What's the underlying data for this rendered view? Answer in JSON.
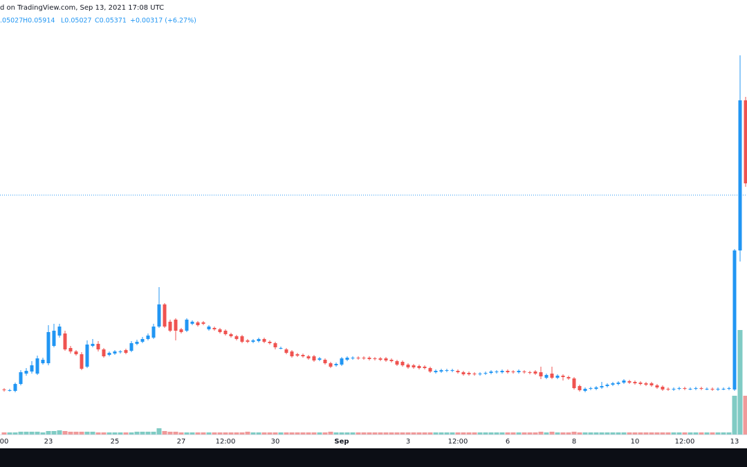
{
  "chart_data": {
    "type": "candlestick",
    "attribution": "d on TradingView.com, Sep 13, 2021 17:08 UTC",
    "ohlc_legend": [
      ".05027",
      "H0.05914",
      "L0.05027",
      "C0.05371",
      "+0.00317 (+6.27%)"
    ],
    "up_color": "#2196f3",
    "down_color": "#ef5350",
    "volume_up_color": "#80cbc4",
    "volume_down_color": "#ef9a9a",
    "legend_color": "#2196f3",
    "price_line": 0.0418,
    "ylim": [
      0.0072,
      0.068
    ],
    "volume_lim": [
      0,
      608
    ],
    "categories": [
      "00",
      null,
      null,
      null,
      null,
      null,
      null,
      null,
      "23",
      null,
      null,
      null,
      null,
      null,
      null,
      null,
      null,
      null,
      null,
      null,
      "25",
      null,
      null,
      null,
      null,
      null,
      null,
      null,
      null,
      null,
      null,
      null,
      "27",
      null,
      null,
      null,
      null,
      null,
      null,
      null,
      "12:00",
      null,
      null,
      null,
      null,
      null,
      null,
      null,
      null,
      "30",
      null,
      null,
      null,
      null,
      null,
      null,
      null,
      null,
      null,
      null,
      null,
      "Sep",
      null,
      null,
      null,
      null,
      null,
      null,
      null,
      null,
      null,
      null,
      null,
      "3",
      null,
      null,
      null,
      null,
      null,
      null,
      null,
      null,
      "12:00",
      null,
      null,
      null,
      null,
      null,
      null,
      null,
      null,
      "6",
      null,
      null,
      null,
      null,
      null,
      null,
      null,
      null,
      null,
      null,
      null,
      "8",
      null,
      null,
      null,
      null,
      null,
      null,
      null,
      null,
      null,
      null,
      "10",
      null,
      null,
      null,
      null,
      null,
      null,
      null,
      null,
      "12:00",
      null,
      null,
      null,
      null,
      null,
      null,
      null,
      null,
      "13",
      null,
      null
    ],
    "open": [
      0.0137,
      0.0136,
      0.0135,
      0.0145,
      0.016,
      0.0163,
      0.016,
      0.0175,
      0.0175,
      0.02,
      0.0215,
      0.0218,
      0.0197,
      0.0192,
      0.0188,
      0.017,
      0.02,
      0.0203,
      0.0195,
      0.0187,
      0.0189,
      0.0191,
      0.0194,
      0.0193,
      0.0203,
      0.0206,
      0.021,
      0.0212,
      0.0228,
      0.026,
      0.0235,
      0.0238,
      0.0224,
      0.0222,
      0.0232,
      0.0234,
      0.0234,
      0.0224,
      0.0226,
      0.0224,
      0.0222,
      0.0217,
      0.0214,
      0.0214,
      0.0208,
      0.0206,
      0.0207,
      0.021,
      0.0206,
      0.0204,
      0.0196,
      0.0195,
      0.0192,
      0.0188,
      0.0187,
      0.0185,
      0.0185,
      0.018,
      0.018,
      0.0175,
      0.0172,
      0.0173,
      0.018,
      0.0182,
      0.0183,
      0.0183,
      0.0183,
      0.0182,
      0.0182,
      0.0182,
      0.018,
      0.0178,
      0.0177,
      0.0173,
      0.0172,
      0.0171,
      0.017,
      0.0168,
      0.0162,
      0.0163,
      0.0164,
      0.0164,
      0.0164,
      0.0162,
      0.0161,
      0.016,
      0.0159,
      0.016,
      0.0161,
      0.0162,
      0.0162,
      0.0164,
      0.0163,
      0.0162,
      0.0163,
      0.0162,
      0.0163,
      0.0162,
      0.0154,
      0.016,
      0.0154,
      0.0157,
      0.0155,
      0.0153,
      0.0142,
      0.0135,
      0.0138,
      0.0138,
      0.014,
      0.0142,
      0.0144,
      0.0145,
      0.0147,
      0.0149,
      0.0148,
      0.0147,
      0.0146,
      0.0146,
      0.0143,
      0.0141,
      0.0138,
      0.0137,
      0.0138,
      0.0139,
      0.0138,
      0.0138,
      0.0139,
      0.0138,
      0.0138,
      0.0137,
      0.0138,
      0.0138,
      0.0137,
      0.0338,
      0.0555
    ],
    "high": [
      0.0139,
      0.0138,
      0.0147,
      0.0165,
      0.0168,
      0.0178,
      0.0186,
      0.0183,
      0.023,
      0.0232,
      0.0232,
      0.0222,
      0.02,
      0.0194,
      0.0191,
      0.0208,
      0.021,
      0.0207,
      0.0197,
      0.0192,
      0.0194,
      0.0194,
      0.0196,
      0.0207,
      0.0209,
      0.0213,
      0.0218,
      0.0232,
      0.0285,
      0.0262,
      0.0238,
      0.024,
      0.0226,
      0.024,
      0.0237,
      0.0236,
      0.0236,
      0.023,
      0.0228,
      0.0226,
      0.0224,
      0.0219,
      0.0216,
      0.0216,
      0.021,
      0.021,
      0.0212,
      0.0212,
      0.0208,
      0.0206,
      0.0199,
      0.0197,
      0.0194,
      0.019,
      0.0189,
      0.0187,
      0.0187,
      0.0184,
      0.0182,
      0.0177,
      0.0176,
      0.0184,
      0.0185,
      0.0185,
      0.0185,
      0.0185,
      0.0185,
      0.0184,
      0.0184,
      0.0184,
      0.0182,
      0.018,
      0.0179,
      0.0175,
      0.0174,
      0.0173,
      0.0172,
      0.017,
      0.0166,
      0.0167,
      0.0167,
      0.0167,
      0.0166,
      0.0164,
      0.0163,
      0.0162,
      0.0162,
      0.0163,
      0.0165,
      0.0165,
      0.0166,
      0.0166,
      0.0165,
      0.0166,
      0.0165,
      0.0164,
      0.0165,
      0.017,
      0.016,
      0.017,
      0.0159,
      0.0159,
      0.0157,
      0.0155,
      0.0144,
      0.014,
      0.0141,
      0.0142,
      0.0148,
      0.0146,
      0.0148,
      0.0149,
      0.0152,
      0.0151,
      0.015,
      0.0149,
      0.0148,
      0.0148,
      0.0145,
      0.0143,
      0.014,
      0.014,
      0.0141,
      0.0141,
      0.014,
      0.0141,
      0.0141,
      0.014,
      0.014,
      0.014,
      0.014,
      0.0141,
      0.034,
      0.062,
      0.056
    ],
    "low": [
      0.0134,
      0.0134,
      0.0133,
      0.0143,
      0.0157,
      0.016,
      0.0158,
      0.0173,
      0.0172,
      0.0198,
      0.0212,
      0.0193,
      0.0189,
      0.0186,
      0.0165,
      0.0168,
      0.0198,
      0.0192,
      0.0183,
      0.0185,
      0.0187,
      0.0189,
      0.0188,
      0.0191,
      0.0201,
      0.0204,
      0.0208,
      0.021,
      0.0226,
      0.0226,
      0.022,
      0.0208,
      0.0218,
      0.022,
      0.023,
      0.0228,
      0.023,
      0.0222,
      0.0222,
      0.0218,
      0.0215,
      0.0212,
      0.0208,
      0.0204,
      0.0204,
      0.0204,
      0.0205,
      0.0204,
      0.0202,
      0.0195,
      0.0195,
      0.0188,
      0.0183,
      0.0184,
      0.0183,
      0.018,
      0.0177,
      0.0178,
      0.0173,
      0.0168,
      0.017,
      0.0171,
      0.0178,
      0.018,
      0.018,
      0.018,
      0.0179,
      0.0179,
      0.0178,
      0.0177,
      0.0176,
      0.0171,
      0.017,
      0.0167,
      0.0167,
      0.0166,
      0.0166,
      0.0161,
      0.016,
      0.0161,
      0.0162,
      0.0162,
      0.016,
      0.0157,
      0.0157,
      0.0157,
      0.0157,
      0.0158,
      0.0159,
      0.016,
      0.016,
      0.016,
      0.016,
      0.016,
      0.016,
      0.0159,
      0.0158,
      0.0152,
      0.0152,
      0.0152,
      0.0152,
      0.015,
      0.0151,
      0.0137,
      0.0134,
      0.0133,
      0.0136,
      0.0136,
      0.0138,
      0.014,
      0.0142,
      0.0143,
      0.0145,
      0.0145,
      0.0144,
      0.0143,
      0.0142,
      0.0141,
      0.0138,
      0.0135,
      0.0135,
      0.0135,
      0.0136,
      0.0136,
      0.0136,
      0.0136,
      0.0136,
      0.0136,
      0.0135,
      0.0135,
      0.0136,
      0.0136,
      0.0135,
      0.0322,
      0.043
    ],
    "close": [
      0.0136,
      0.0136,
      0.0145,
      0.0162,
      0.0164,
      0.0172,
      0.0182,
      0.018,
      0.022,
      0.0222,
      0.0228,
      0.0195,
      0.0192,
      0.0188,
      0.0167,
      0.0202,
      0.0203,
      0.0195,
      0.0185,
      0.019,
      0.0192,
      0.0192,
      0.019,
      0.0204,
      0.0206,
      0.021,
      0.0215,
      0.0228,
      0.026,
      0.0228,
      0.0222,
      0.0222,
      0.022,
      0.0238,
      0.0235,
      0.023,
      0.0232,
      0.0228,
      0.0224,
      0.022,
      0.0217,
      0.0214,
      0.021,
      0.0206,
      0.0206,
      0.0208,
      0.021,
      0.0206,
      0.0204,
      0.0198,
      0.0197,
      0.019,
      0.0185,
      0.0186,
      0.0185,
      0.0182,
      0.0179,
      0.0182,
      0.0175,
      0.017,
      0.0174,
      0.0182,
      0.0183,
      0.0183,
      0.0182,
      0.0182,
      0.0181,
      0.0181,
      0.018,
      0.0179,
      0.0178,
      0.0173,
      0.0172,
      0.0169,
      0.0169,
      0.0168,
      0.0168,
      0.0163,
      0.0164,
      0.0165,
      0.0165,
      0.0165,
      0.0162,
      0.0159,
      0.0159,
      0.0159,
      0.016,
      0.0161,
      0.0163,
      0.0163,
      0.0164,
      0.0162,
      0.0162,
      0.0164,
      0.0162,
      0.0161,
      0.016,
      0.0156,
      0.0158,
      0.0154,
      0.0157,
      0.0155,
      0.0153,
      0.0139,
      0.0136,
      0.0138,
      0.0139,
      0.014,
      0.0142,
      0.0144,
      0.0146,
      0.0147,
      0.015,
      0.0147,
      0.0146,
      0.0145,
      0.0144,
      0.0143,
      0.014,
      0.0137,
      0.0137,
      0.0138,
      0.0139,
      0.0138,
      0.0138,
      0.0139,
      0.0138,
      0.0138,
      0.0137,
      0.0138,
      0.0138,
      0.0139,
      0.0338,
      0.0555,
      0.0435
    ],
    "volume": [
      3,
      3,
      3,
      4,
      4,
      4,
      4,
      3,
      5,
      5,
      6,
      5,
      4,
      4,
      4,
      4,
      4,
      3,
      3,
      3,
      3,
      3,
      3,
      3,
      4,
      4,
      4,
      4,
      9,
      5,
      4,
      4,
      3,
      3,
      3,
      3,
      3,
      3,
      3,
      3,
      3,
      3,
      3,
      3,
      4,
      3,
      3,
      3,
      3,
      3,
      3,
      3,
      3,
      3,
      3,
      3,
      3,
      3,
      3,
      4,
      3,
      3,
      3,
      3,
      3,
      3,
      3,
      3,
      3,
      3,
      3,
      3,
      3,
      3,
      3,
      3,
      3,
      3,
      3,
      3,
      3,
      3,
      3,
      3,
      3,
      3,
      3,
      3,
      3,
      3,
      3,
      3,
      3,
      3,
      3,
      3,
      3,
      4,
      3,
      4,
      3,
      3,
      3,
      4,
      3,
      3,
      3,
      3,
      3,
      3,
      3,
      3,
      3,
      3,
      3,
      3,
      3,
      3,
      3,
      3,
      3,
      3,
      3,
      3,
      3,
      3,
      3,
      3,
      3,
      3,
      3,
      3,
      56,
      151,
      56
    ]
  }
}
